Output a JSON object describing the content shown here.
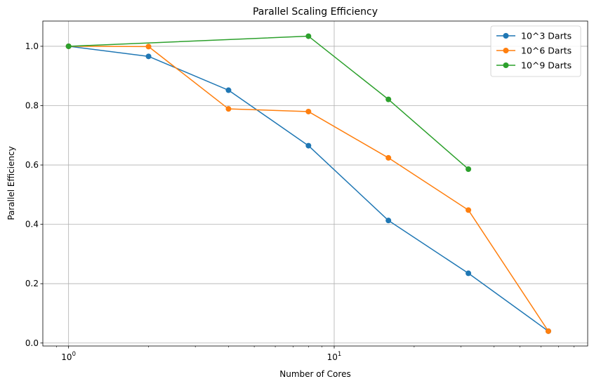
{
  "chart_data": {
    "type": "line",
    "title": "Parallel Scaling Efficiency",
    "xlabel": "Number of Cores",
    "ylabel": "Parallel Efficiency",
    "xscale": "log",
    "xlim": [
      0.8,
      90
    ],
    "ylim": [
      -0.01,
      1.085
    ],
    "grid": true,
    "legend_position": "top-right",
    "x_ticks": [
      {
        "value": 1,
        "base": "10",
        "exp": "0"
      },
      {
        "value": 10,
        "base": "10",
        "exp": "1"
      }
    ],
    "y_ticks": [
      {
        "value": 0.0,
        "label": "0.0"
      },
      {
        "value": 0.2,
        "label": "0.2"
      },
      {
        "value": 0.4,
        "label": "0.4"
      },
      {
        "value": 0.6,
        "label": "0.6"
      },
      {
        "value": 0.8,
        "label": "0.8"
      },
      {
        "value": 1.0,
        "label": "1.0"
      }
    ],
    "series": [
      {
        "name": "10^3 Darts",
        "color": "#1f77b4",
        "x": [
          1,
          2,
          4,
          8,
          16,
          32,
          64
        ],
        "y": [
          1.0,
          0.966,
          0.852,
          0.665,
          0.413,
          0.235,
          0.04
        ]
      },
      {
        "name": "10^6 Darts",
        "color": "#ff7f0e",
        "x": [
          1,
          2,
          4,
          8,
          16,
          32,
          64
        ],
        "y": [
          1.0,
          0.999,
          0.789,
          0.78,
          0.624,
          0.448,
          0.04
        ]
      },
      {
        "name": "10^9 Darts",
        "color": "#2ca02c",
        "x": [
          1,
          8,
          16,
          32
        ],
        "y": [
          1.0,
          1.034,
          0.821,
          0.586
        ]
      }
    ]
  }
}
